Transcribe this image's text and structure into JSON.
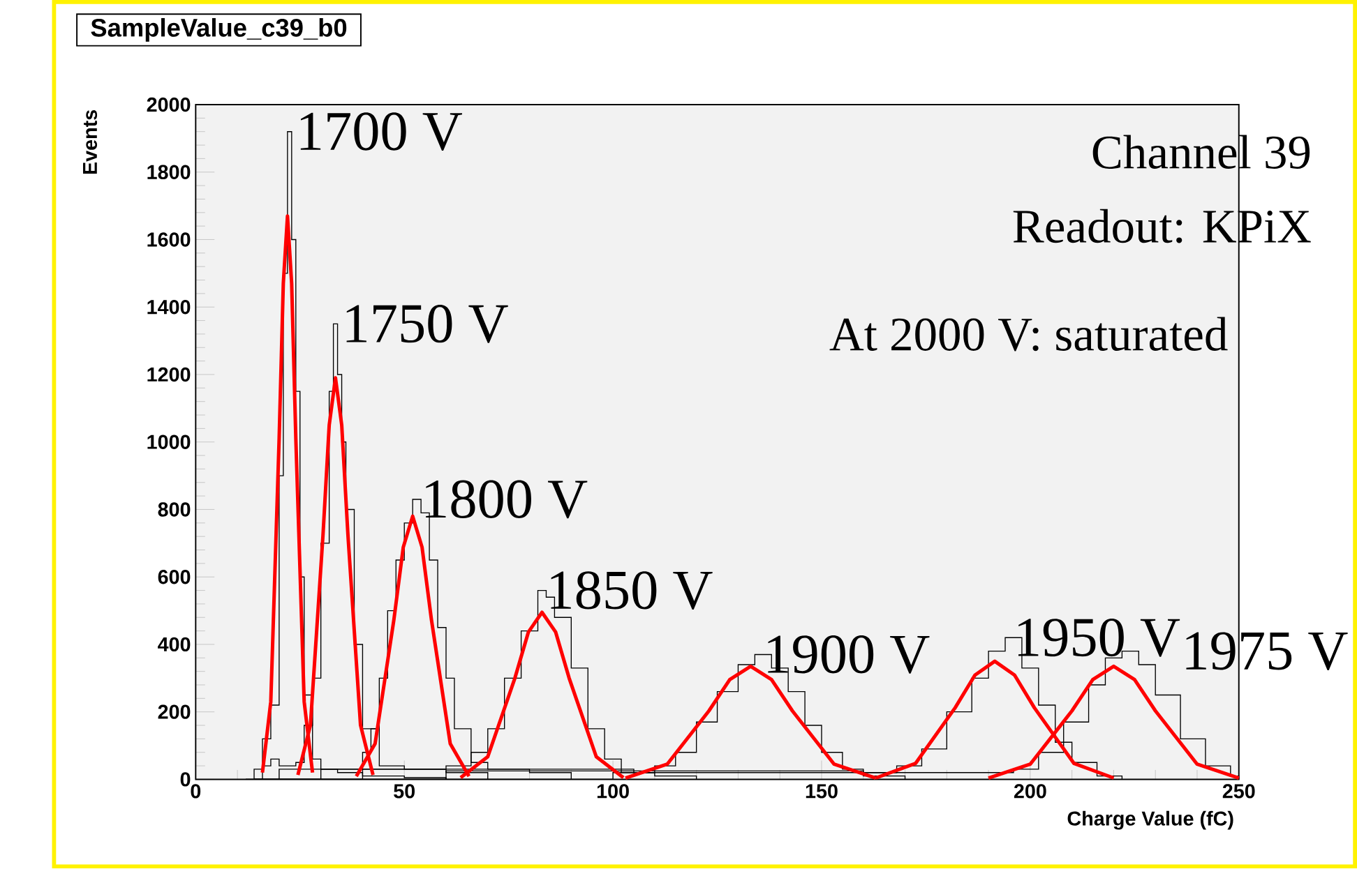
{
  "chart_data": {
    "type": "line",
    "title": "SampleValue_c39_b0",
    "xlabel": "Charge Value (fC)",
    "ylabel": "Events",
    "xlim": [
      0,
      250
    ],
    "ylim": [
      0,
      2000
    ],
    "xticks": [
      0,
      50,
      100,
      150,
      200,
      250
    ],
    "yticks": [
      0,
      200,
      400,
      600,
      800,
      1000,
      1200,
      1400,
      1600,
      1800,
      2000
    ],
    "grid": false,
    "series": [
      {
        "type": "step",
        "color": "#000000",
        "x": [
          12,
          14,
          16,
          18,
          20,
          21,
          22,
          23,
          24,
          25,
          26,
          28,
          30,
          34,
          40,
          50,
          60
        ],
        "values": [
          0,
          30,
          120,
          220,
          900,
          1500,
          1920,
          1600,
          1150,
          600,
          250,
          60,
          30,
          20,
          10,
          5,
          0
        ]
      },
      {
        "type": "step",
        "color": "#000000",
        "x": [
          12,
          16,
          18,
          20,
          24,
          26,
          28,
          30,
          32,
          33,
          34,
          35,
          36,
          38,
          40,
          44,
          50,
          60,
          70
        ],
        "values": [
          0,
          40,
          60,
          40,
          50,
          160,
          300,
          700,
          1150,
          1350,
          1200,
          1000,
          800,
          400,
          150,
          40,
          30,
          20,
          0
        ]
      },
      {
        "type": "step",
        "color": "#000000",
        "x": [
          14,
          20,
          30,
          40,
          42,
          44,
          46,
          48,
          50,
          52,
          54,
          56,
          58,
          60,
          62,
          66,
          70,
          80,
          90
        ],
        "values": [
          0,
          30,
          30,
          80,
          150,
          300,
          500,
          650,
          760,
          830,
          790,
          650,
          450,
          300,
          150,
          50,
          30,
          20,
          0
        ]
      },
      {
        "type": "step",
        "color": "#000000",
        "x": [
          14,
          30,
          50,
          60,
          66,
          70,
          74,
          78,
          82,
          84,
          86,
          90,
          94,
          98,
          102,
          110,
          120
        ],
        "values": [
          0,
          30,
          30,
          40,
          80,
          150,
          300,
          440,
          560,
          540,
          480,
          330,
          150,
          60,
          20,
          10,
          0
        ]
      },
      {
        "type": "step",
        "color": "#000000",
        "x": [
          14,
          40,
          80,
          105,
          110,
          115,
          120,
          125,
          130,
          134,
          138,
          142,
          146,
          150,
          155,
          160,
          170
        ],
        "values": [
          0,
          30,
          30,
          20,
          40,
          80,
          170,
          260,
          340,
          370,
          330,
          260,
          160,
          80,
          30,
          10,
          0
        ]
      },
      {
        "type": "step",
        "color": "#000000",
        "x": [
          14,
          60,
          120,
          160,
          168,
          174,
          180,
          186,
          190,
          194,
          198,
          202,
          206,
          210,
          216,
          222
        ],
        "values": [
          0,
          25,
          25,
          20,
          40,
          90,
          200,
          300,
          380,
          420,
          330,
          220,
          110,
          50,
          10,
          0
        ]
      },
      {
        "type": "step",
        "color": "#000000",
        "x": [
          14,
          100,
          180,
          196,
          202,
          208,
          214,
          218,
          222,
          226,
          230,
          236,
          242,
          248,
          250
        ],
        "values": [
          0,
          20,
          20,
          30,
          80,
          170,
          280,
          360,
          380,
          340,
          250,
          120,
          40,
          10,
          0
        ]
      },
      {
        "color": "#ff0000",
        "x": [
          16,
          18,
          20,
          21,
          22,
          23,
          24,
          26,
          28
        ],
        "values": [
          20,
          230,
          1010,
          1470,
          1670,
          1470,
          1010,
          230,
          20
        ]
      },
      {
        "color": "#ff0000",
        "x": [
          24.5,
          27.5,
          30.5,
          32,
          33.5,
          35,
          36.5,
          39.5,
          42.5
        ],
        "values": [
          13,
          161,
          722,
          1050,
          1190,
          1050,
          722,
          161,
          13
        ]
      },
      {
        "color": "#ff0000",
        "x": [
          38.5,
          43,
          47.5,
          49.75,
          52,
          54.25,
          56.5,
          61,
          65.5
        ],
        "values": [
          9,
          106,
          473,
          688,
          780,
          688,
          473,
          106,
          9
        ]
      },
      {
        "color": "#ff0000",
        "x": [
          63.5,
          70,
          76.5,
          79.75,
          83,
          86.25,
          89.5,
          96,
          102.5
        ],
        "values": [
          5,
          67,
          300,
          437,
          495,
          437,
          300,
          67,
          5
        ]
      },
      {
        "color": "#ff0000",
        "x": [
          103,
          113,
          123,
          128,
          133,
          138,
          143,
          153,
          163
        ],
        "values": [
          4,
          45,
          203,
          296,
          335,
          296,
          203,
          45,
          4
        ]
      },
      {
        "color": "#ff0000",
        "x": [
          163,
          172.5,
          182,
          186.75,
          191.5,
          196.25,
          201,
          210.5,
          220
        ],
        "values": [
          4,
          47,
          212,
          309,
          350,
          309,
          212,
          47,
          4
        ]
      },
      {
        "color": "#ff0000",
        "x": [
          190,
          200,
          210,
          215,
          220,
          225,
          230,
          240,
          250
        ],
        "values": [
          4,
          45,
          203,
          296,
          335,
          296,
          203,
          45,
          4
        ]
      }
    ],
    "annotations": [
      {
        "text": "1700 V",
        "x": 22,
        "y": 1920
      },
      {
        "text": "1750 V",
        "x": 33,
        "y": 1350
      },
      {
        "text": "1800 V",
        "x": 52,
        "y": 830
      },
      {
        "text": "1850 V",
        "x": 82,
        "y": 560
      },
      {
        "text": "1900 V",
        "x": 134,
        "y": 370
      },
      {
        "text": "1950 V",
        "x": 194,
        "y": 420
      },
      {
        "text": "1975 V",
        "x": 222,
        "y": 380
      },
      "Channel 39",
      "Readout: KPiX",
      "At 2000 V: saturated"
    ]
  }
}
